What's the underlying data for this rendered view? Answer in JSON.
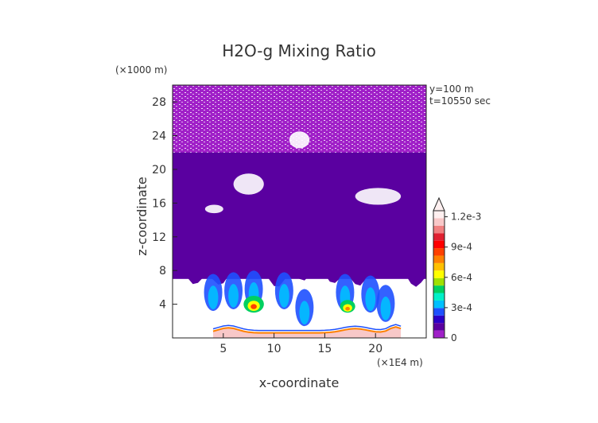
{
  "chart_data": {
    "type": "heatmap",
    "title": "H2O-g Mixing Ratio",
    "xlabel": "x-coordinate",
    "ylabel": "z-coordinate",
    "x_units": "(×1E4 m)",
    "y_units": "(×1000 m)",
    "annotations": [
      "y=100 m",
      "t=10550 sec"
    ],
    "xlim": [
      0,
      25
    ],
    "ylim": [
      0,
      30
    ],
    "xticks": [
      5,
      10,
      15,
      20
    ],
    "yticks": [
      4,
      8,
      12,
      16,
      20,
      24,
      28
    ],
    "grid": false,
    "colorbar": {
      "labels": [
        "0",
        "3e-4",
        "6e-4",
        "9e-4",
        "1.2e-3"
      ],
      "label_values": [
        0,
        0.0003,
        0.0006,
        0.0009,
        0.0012
      ],
      "min": 0,
      "max": 0.00126,
      "extend": "max",
      "colors": [
        "#a020c8",
        "#5a00a0",
        "#2a00c8",
        "#1e50ff",
        "#00c0ff",
        "#00f0c8",
        "#00d060",
        "#a0e000",
        "#ffff00",
        "#ffc000",
        "#ff8000",
        "#ff4000",
        "#ff0000",
        "#e02030",
        "#f08080",
        "#f8c8c8",
        "#fff0f0"
      ]
    },
    "regions": [
      {
        "name": "upper-moist-layer",
        "x_range": [
          0,
          25
        ],
        "z_range": [
          5.5,
          30
        ],
        "approx_value": 4e-05
      },
      {
        "name": "mid-level-cells",
        "x_range": [
          3.5,
          22
        ],
        "z_range": [
          2.5,
          7.5
        ],
        "approx_value": 0.0004
      },
      {
        "name": "core-cell-left",
        "x_range": [
          7,
          9
        ],
        "z_range": [
          3,
          5
        ],
        "approx_value": 0.0009
      },
      {
        "name": "core-cell-right",
        "x_range": [
          16.5,
          18
        ],
        "z_range": [
          3,
          4.5
        ],
        "approx_value": 0.0008
      },
      {
        "name": "surface-layer",
        "x_range": [
          4,
          22.5
        ],
        "z_range": [
          0,
          1.5
        ],
        "approx_value": 0.00126
      }
    ]
  }
}
